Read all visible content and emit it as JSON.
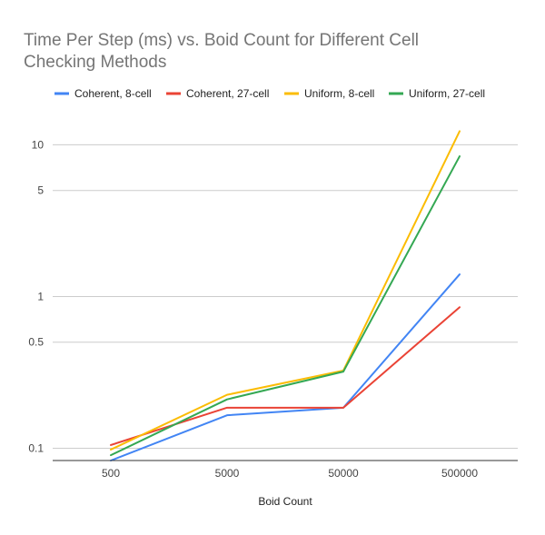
{
  "chart_data": {
    "type": "line",
    "title_lines": [
      "Time Per Step (ms) vs. Boid Count for Different Cell",
      "Checking Methods"
    ],
    "xlabel": "Boid Count",
    "ylabel": "",
    "categories": [
      "500",
      "5000",
      "50000",
      "500000"
    ],
    "y_scale": "log",
    "ylim": [
      0.083,
      16
    ],
    "yticks": [
      {
        "value": 0.1,
        "label": "0.1"
      },
      {
        "value": 0.5,
        "label": "0.5"
      },
      {
        "value": 1,
        "label": "1"
      },
      {
        "value": 5,
        "label": "5"
      },
      {
        "value": 10,
        "label": "10"
      }
    ],
    "grid": true,
    "legend_position": "top",
    "series": [
      {
        "name": "Coherent, 8-cell",
        "color": "#4285f4",
        "values": [
          0.083,
          0.165,
          0.185,
          1.4
        ]
      },
      {
        "name": "Coherent, 27-cell",
        "color": "#ea4335",
        "values": [
          0.105,
          0.185,
          0.185,
          0.85
        ]
      },
      {
        "name": "Uniform, 8-cell",
        "color": "#fbbc04",
        "values": [
          0.098,
          0.225,
          0.325,
          12.3
        ]
      },
      {
        "name": "Uniform, 27-cell",
        "color": "#34a853",
        "values": [
          0.09,
          0.21,
          0.32,
          8.4
        ]
      }
    ]
  }
}
